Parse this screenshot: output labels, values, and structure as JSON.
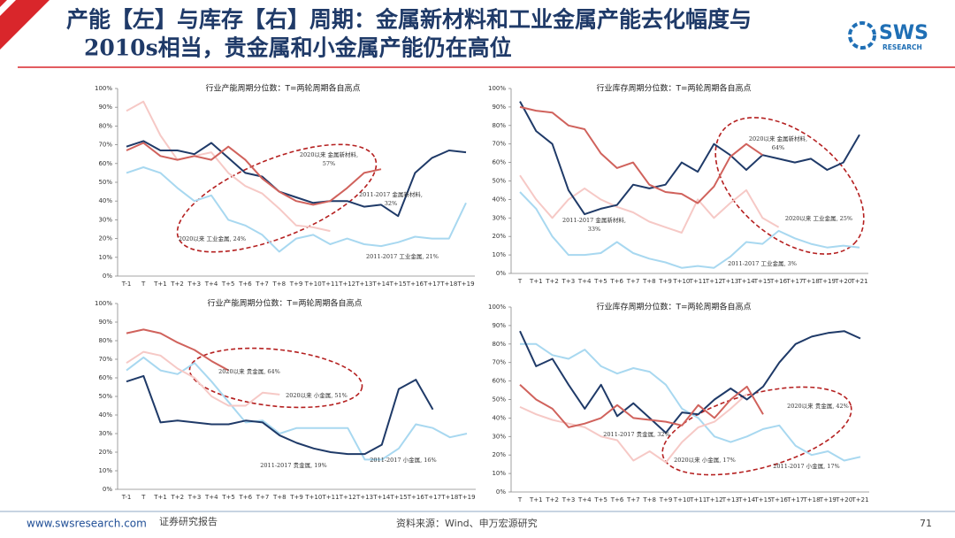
{
  "header": {
    "title_lines": [
      "产能【左】与库存【右】周期：金属新材料和工业金属产能去化幅度与",
      "2010s相当，贵金属和小金属产能仍在高位"
    ],
    "logo": {
      "brand": "SWS",
      "sub": "RESEARCH"
    }
  },
  "chart_data": [
    {
      "type": "line",
      "title": "行业产能周期分位数：T=两轮周期各自高点",
      "categories": [
        "T-1",
        "T",
        "T+1",
        "T+2",
        "T+3",
        "T+4",
        "T+5",
        "T+6",
        "T+7",
        "T+8",
        "T+9",
        "T+10",
        "T+11",
        "T+12",
        "T+13",
        "T+14",
        "T+15",
        "T+16",
        "T+17",
        "T+18",
        "T+19"
      ],
      "ylim": [
        0,
        100
      ],
      "yticks": [
        {
          "value": 0,
          "label": "0%"
        },
        {
          "value": 10,
          "label": "10%"
        },
        {
          "value": 20,
          "label": "20%"
        },
        {
          "value": 30,
          "label": "30%"
        },
        {
          "value": 40,
          "label": "40%"
        },
        {
          "value": 50,
          "label": "50%"
        },
        {
          "value": 60,
          "label": "60%"
        },
        {
          "value": 70,
          "label": "70%"
        },
        {
          "value": 80,
          "label": "80%"
        },
        {
          "value": 90,
          "label": "90%"
        },
        {
          "value": 100,
          "label": "100%"
        }
      ],
      "series": [
        {
          "color": "#a8d8f0",
          "values": [
            55,
            58,
            55,
            47,
            40,
            43,
            30,
            27,
            22,
            13,
            20,
            22,
            17,
            20,
            17,
            16,
            18,
            21,
            20,
            20,
            39
          ]
        },
        {
          "color": "#f6c9c6",
          "values": [
            88,
            93,
            75,
            62,
            64,
            66,
            55,
            48,
            44,
            36,
            27,
            26,
            24,
            null,
            null,
            null,
            null,
            null,
            null,
            null,
            null
          ]
        },
        {
          "color": "#1f3a68",
          "values": [
            69,
            72,
            67,
            67,
            65,
            71,
            63,
            55,
            53,
            45,
            42,
            39,
            40,
            40,
            37,
            38,
            32,
            55,
            63,
            67,
            66
          ]
        },
        {
          "color": "#d0625c",
          "values": [
            67,
            71,
            64,
            62,
            64,
            62,
            69,
            62,
            52,
            45,
            40,
            38,
            40,
            47,
            55,
            57,
            null,
            null,
            null,
            null,
            null
          ]
        }
      ],
      "annotations": [
        {
          "lines": [
            "2020以来 金属新材料,",
            "57%"
          ]
        },
        {
          "lines": [
            "2011-2017 金属新材料,",
            "32%"
          ]
        },
        {
          "lines": [
            "2020以来 工业金属, 24%"
          ]
        },
        {
          "lines": [
            "2011-2017 工业金属, 21%"
          ]
        }
      ]
    },
    {
      "type": "line",
      "title": "行业库存周期分位数：T=两轮周期各自高点",
      "categories": [
        "T",
        "T+1",
        "T+2",
        "T+3",
        "T+4",
        "T+5",
        "T+6",
        "T+7",
        "T+8",
        "T+9",
        "T+10",
        "T+11",
        "T+12",
        "T+13",
        "T+14",
        "T+15",
        "T+16",
        "T+17",
        "T+18",
        "T+19",
        "T+20",
        "T+21"
      ],
      "ylim": [
        0,
        100
      ],
      "yticks": [
        {
          "value": 0,
          "label": "0%"
        },
        {
          "value": 10,
          "label": "10%"
        },
        {
          "value": 20,
          "label": "20%"
        },
        {
          "value": 30,
          "label": "30%"
        },
        {
          "value": 40,
          "label": "40%"
        },
        {
          "value": 50,
          "label": "50%"
        },
        {
          "value": 60,
          "label": "60%"
        },
        {
          "value": 70,
          "label": "70%"
        },
        {
          "value": 80,
          "label": "80%"
        },
        {
          "value": 90,
          "label": "90%"
        },
        {
          "value": 100,
          "label": "100%"
        }
      ],
      "series": [
        {
          "color": "#a8d8f0",
          "values": [
            44,
            35,
            20,
            10,
            10,
            11,
            17,
            11,
            8,
            6,
            3,
            4,
            3,
            9,
            17,
            16,
            23,
            19,
            16,
            14,
            15,
            14
          ]
        },
        {
          "color": "#f6c9c6",
          "values": [
            53,
            40,
            30,
            40,
            46,
            40,
            36,
            33,
            28,
            25,
            22,
            40,
            30,
            38,
            45,
            30,
            25,
            null,
            null,
            null,
            null,
            null
          ]
        },
        {
          "color": "#1f3a68",
          "values": [
            93,
            77,
            70,
            45,
            32,
            35,
            37,
            48,
            46,
            48,
            60,
            55,
            70,
            64,
            56,
            64,
            62,
            60,
            62,
            56,
            60,
            75
          ]
        },
        {
          "color": "#d0625c",
          "values": [
            90,
            88,
            87,
            80,
            78,
            65,
            57,
            60,
            48,
            44,
            43,
            38,
            47,
            63,
            70,
            64,
            null,
            null,
            null,
            null,
            null,
            null
          ]
        }
      ],
      "annotations": [
        {
          "lines": [
            "2020以来 金属新材料,",
            "64%"
          ]
        },
        {
          "lines": [
            "2011-2017 金属新材料,",
            "33%"
          ]
        },
        {
          "lines": [
            "2020以来 工业金属, 25%"
          ]
        },
        {
          "lines": [
            "2011-2017 工业金属, 3%"
          ]
        }
      ]
    },
    {
      "type": "line",
      "title": "行业产能周期分位数：T=两轮周期各自高点",
      "categories": [
        "T-1",
        "T",
        "T+1",
        "T+2",
        "T+3",
        "T+4",
        "T+5",
        "T+6",
        "T+7",
        "T+8",
        "T+9",
        "T+10",
        "T+11",
        "T+12",
        "T+13",
        "T+14",
        "T+15",
        "T+16",
        "T+17",
        "T+18",
        "T+19"
      ],
      "ylim": [
        0,
        100
      ],
      "yticks": [
        {
          "value": 0,
          "label": "0%"
        },
        {
          "value": 10,
          "label": "10%"
        },
        {
          "value": 20,
          "label": "20%"
        },
        {
          "value": 30,
          "label": "30%"
        },
        {
          "value": 40,
          "label": "40%"
        },
        {
          "value": 50,
          "label": "50%"
        },
        {
          "value": 60,
          "label": "60%"
        },
        {
          "value": 70,
          "label": "70%"
        },
        {
          "value": 80,
          "label": "80%"
        },
        {
          "value": 90,
          "label": "90%"
        },
        {
          "value": 100,
          "label": "100%"
        }
      ],
      "series": [
        {
          "color": "#a8d8f0",
          "values": [
            64,
            71,
            64,
            62,
            68,
            58,
            47,
            36,
            37,
            30,
            33,
            33,
            33,
            33,
            16,
            16,
            22,
            35,
            33,
            28,
            30
          ]
        },
        {
          "color": "#f6c9c6",
          "values": [
            68,
            74,
            72,
            65,
            60,
            50,
            45,
            45,
            52,
            51,
            null,
            null,
            null,
            null,
            null,
            null,
            null,
            null,
            null,
            null,
            null
          ]
        },
        {
          "color": "#1f3a68",
          "values": [
            58,
            61,
            36,
            37,
            36,
            35,
            35,
            37,
            36,
            29,
            25,
            22,
            20,
            19,
            19,
            24,
            54,
            59,
            43,
            null,
            null
          ]
        },
        {
          "color": "#d0625c",
          "values": [
            84,
            86,
            84,
            79,
            75,
            69,
            64,
            null,
            null,
            null,
            null,
            null,
            null,
            null,
            null,
            null,
            null,
            null,
            null,
            null,
            null
          ]
        }
      ],
      "annotations": [
        {
          "lines": [
            "2020以来 贵金属, 64%"
          ]
        },
        {
          "lines": [
            "2020以来 小金属, 51%"
          ]
        },
        {
          "lines": [
            "2011-2017 贵金属, 19%"
          ]
        },
        {
          "lines": [
            "2011-2017 小金属, 16%"
          ]
        }
      ]
    },
    {
      "type": "line",
      "title": "行业库存周期分位数：T=两轮周期各自高点",
      "categories": [
        "T",
        "T+1",
        "T+2",
        "T+3",
        "T+4",
        "T+5",
        "T+6",
        "T+7",
        "T+8",
        "T+9",
        "T+10",
        "T+11",
        "T+12",
        "T+13",
        "T+14",
        "T+15",
        "T+16",
        "T+17",
        "T+18",
        "T+19",
        "T+20",
        "T+21"
      ],
      "ylim": [
        0,
        100
      ],
      "yticks": [
        {
          "value": 0,
          "label": "0%"
        },
        {
          "value": 10,
          "label": "10%"
        },
        {
          "value": 20,
          "label": "20%"
        },
        {
          "value": 30,
          "label": "30%"
        },
        {
          "value": 40,
          "label": "40%"
        },
        {
          "value": 50,
          "label": "50%"
        },
        {
          "value": 60,
          "label": "60%"
        },
        {
          "value": 70,
          "label": "70%"
        },
        {
          "value": 80,
          "label": "80%"
        },
        {
          "value": 90,
          "label": "90%"
        },
        {
          "value": 100,
          "label": "100%"
        }
      ],
      "series": [
        {
          "color": "#a8d8f0",
          "values": [
            80,
            80,
            74,
            72,
            77,
            68,
            64,
            67,
            65,
            58,
            45,
            40,
            30,
            27,
            30,
            34,
            36,
            25,
            20,
            22,
            17,
            19
          ]
        },
        {
          "color": "#f6c9c6",
          "values": [
            46,
            42,
            39,
            37,
            35,
            30,
            28,
            17,
            22,
            16,
            27,
            35,
            38,
            45,
            53,
            null,
            null,
            null,
            null,
            null,
            null,
            null
          ]
        },
        {
          "color": "#1f3a68",
          "values": [
            87,
            68,
            72,
            58,
            45,
            58,
            41,
            48,
            40,
            32,
            43,
            42,
            50,
            56,
            50,
            57,
            70,
            80,
            84,
            86,
            87,
            83
          ]
        },
        {
          "color": "#d0625c",
          "values": [
            58,
            50,
            45,
            35,
            37,
            40,
            47,
            40,
            39,
            38,
            36,
            47,
            40,
            50,
            57,
            42,
            null,
            null,
            null,
            null,
            null,
            null
          ]
        }
      ],
      "annotations": [
        {
          "lines": [
            "2020以来 贵金属, 42%"
          ]
        },
        {
          "lines": [
            "2011-2017 贵金属, 32%"
          ]
        },
        {
          "lines": [
            "2020以来 小金属, 17%"
          ]
        },
        {
          "lines": [
            "2011-2017 小金属, 17%"
          ]
        }
      ]
    }
  ],
  "footer": {
    "website": "www.swsresearch.com",
    "report_type": "证券研究报告",
    "source": "资料来源：Wind、申万宏源研究",
    "page": "71"
  }
}
